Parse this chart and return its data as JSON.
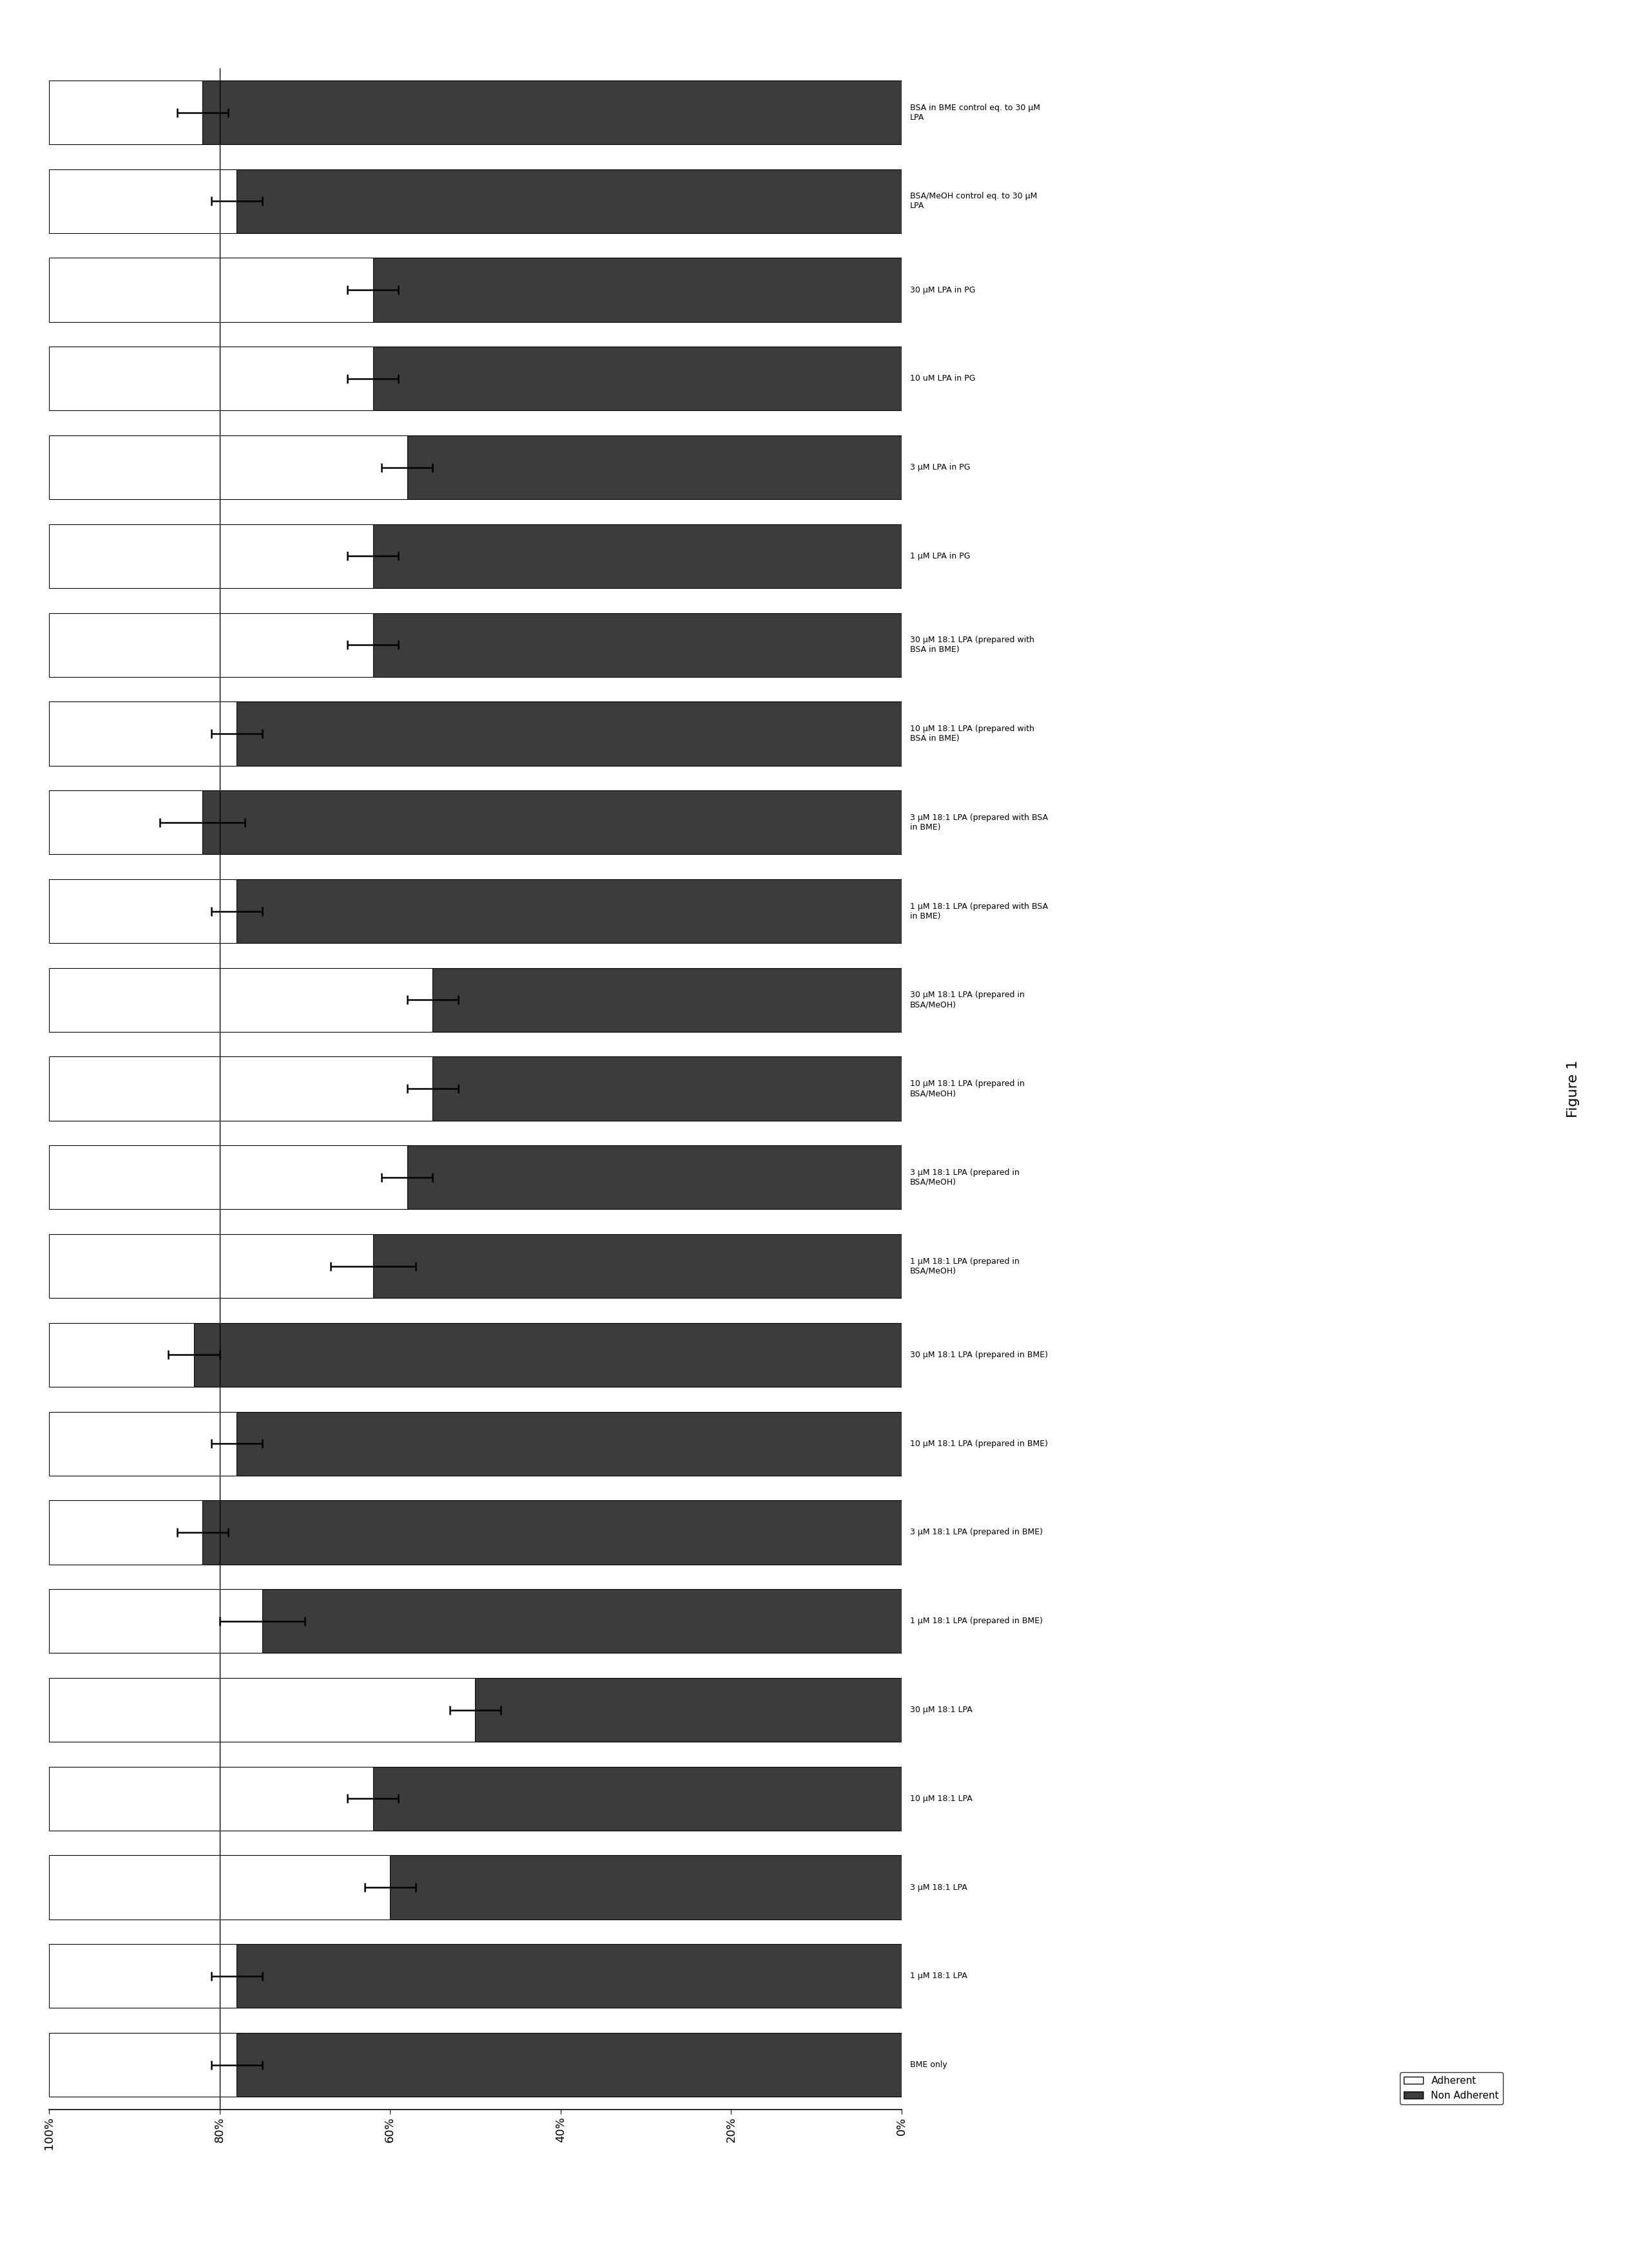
{
  "categories": [
    "BSA in BME control eq. to 30 μM\nLPA",
    "BSA/MeOH control eq. to 30 μM\nLPA",
    "30 μM LPA in PG",
    "10 uM LPA in PG",
    "3 μM LPA in PG",
    "1 μM LPA in PG",
    "30 μM 18:1 LPA (prepared with\nBSA in BME)",
    "10 μM 18:1 LPA (prepared with\nBSA in BME)",
    "3 μM 18:1 LPA (prepared with BSA\nin BME)",
    "1 μM 18:1 LPA (prepared with BSA\nin BME)",
    "30 μM 18:1 LPA (prepared in\nBSA/MeOH)",
    "10 μM 18:1 LPA (prepared in\nBSA/MeOH)",
    "3 μM 18:1 LPA (prepared in\nBSA/MeOH)",
    "1 μM 18:1 LPA (prepared in\nBSA/MeOH)",
    "30 μM 18:1 LPA (prepared in BME)",
    "10 μM 18:1 LPA (prepared in BME)",
    "3 μM 18:1 LPA (prepared in BME)",
    "1 μM 18:1 LPA (prepared in BME)",
    "30 μM 18:1 LPA",
    "10 μM 18:1 LPA",
    "3 μM 18:1 LPA",
    "1 μM 18:1 LPA",
    "BME only"
  ],
  "adherent_pct": [
    18,
    22,
    38,
    38,
    42,
    38,
    38,
    22,
    18,
    22,
    45,
    45,
    42,
    38,
    17,
    22,
    18,
    25,
    50,
    38,
    40,
    22,
    22
  ],
  "adherent_err": [
    3,
    3,
    3,
    3,
    3,
    3,
    3,
    3,
    5,
    3,
    3,
    3,
    3,
    5,
    3,
    3,
    3,
    5,
    3,
    3,
    3,
    3,
    3
  ],
  "non_adherent_pct": [
    82,
    78,
    62,
    62,
    58,
    62,
    62,
    78,
    82,
    78,
    55,
    55,
    58,
    62,
    83,
    78,
    82,
    75,
    50,
    62,
    60,
    78,
    78
  ],
  "adherent_color": "#ffffff",
  "non_adherent_color": "#3c3c3c",
  "edge_color": "#000000",
  "background_color": "#ffffff",
  "bar_height": 0.72,
  "vline_x": 0.8,
  "xlabel_ticks": [
    "100%",
    "80%",
    "60%",
    "40%",
    "20%",
    "0%"
  ],
  "xlabel_vals": [
    1.0,
    0.8,
    0.6,
    0.4,
    0.2,
    0.0
  ],
  "figure_label": "Figure 1",
  "label_fontsize": 9,
  "tick_fontsize": 13,
  "legend_fontsize": 11,
  "title_fontsize": 16
}
